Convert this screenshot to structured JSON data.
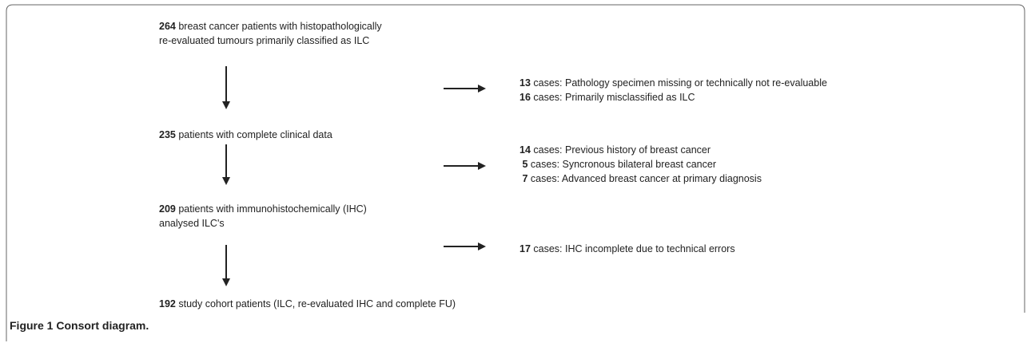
{
  "nodes": [
    {
      "count": "264",
      "lines": [
        "breast cancer patients with histopathologically",
        "re-evaluated tumours primarily classified as ILC"
      ]
    },
    {
      "count": "235",
      "lines": [
        "patients with complete clinical data"
      ]
    },
    {
      "count": "209",
      "lines": [
        "patients  with immunohistochemically (IHC)",
        "analysed ILC's"
      ]
    },
    {
      "count": "192",
      "lines": [
        "study cohort patients (ILC, re-evaluated IHC and complete FU)"
      ]
    }
  ],
  "exclusions": [
    {
      "items": [
        {
          "count": "13",
          "text": "cases: Pathology specimen missing or technically not re-evaluable"
        },
        {
          "count": "16",
          "text": "cases:  Primarily misclassified as ILC"
        }
      ]
    },
    {
      "items": [
        {
          "count": "14",
          "text": "cases: Previous history of breast cancer"
        },
        {
          "count": "5",
          "text": "cases: Syncronous bilateral breast cancer"
        },
        {
          "count": "7",
          "text": "cases: Advanced breast cancer at primary diagnosis"
        }
      ]
    },
    {
      "items": [
        {
          "count": "17",
          "text": "cases: IHC incomplete due to technical errors"
        }
      ]
    }
  ],
  "caption": {
    "label": "Figure 1",
    "title": "Consort diagram."
  }
}
